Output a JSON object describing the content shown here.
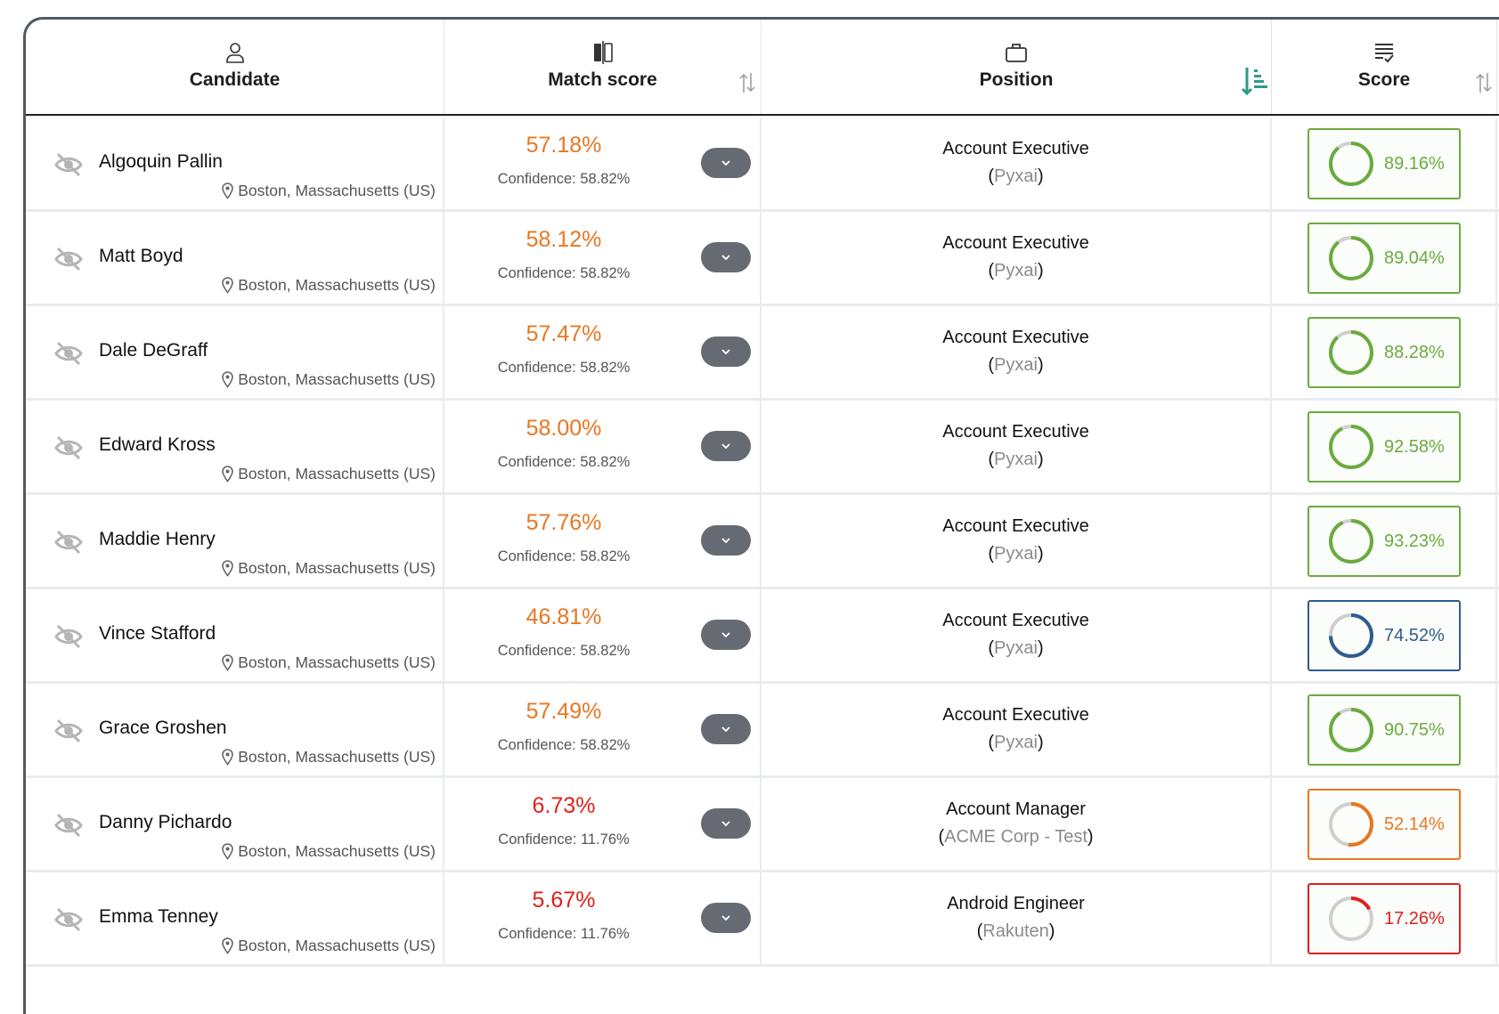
{
  "header": {
    "candidate": "Candidate",
    "match_score": "Match score",
    "position": "Position",
    "score": "Score"
  },
  "colors": {
    "green": "#6aab3e",
    "blue": "#2f5d8c",
    "orange": "#e87722",
    "red": "#e0201b",
    "sort_active": "#2f9a8a"
  },
  "rows": [
    {
      "name": "Algoquin Pallin",
      "location": "Boston, Massachusetts (US)",
      "match": "57.18%",
      "confidence": "Confidence: 58.82%",
      "match_level": "orange",
      "position": "Account Executive",
      "company": "Pyxai",
      "score": "89.16%",
      "score_value": 89.16,
      "score_level": "green"
    },
    {
      "name": "Matt Boyd",
      "location": "Boston, Massachusetts (US)",
      "match": "58.12%",
      "confidence": "Confidence: 58.82%",
      "match_level": "orange",
      "position": "Account Executive",
      "company": "Pyxai",
      "score": "89.04%",
      "score_value": 89.04,
      "score_level": "green"
    },
    {
      "name": "Dale DeGraff",
      "location": "Boston, Massachusetts (US)",
      "match": "57.47%",
      "confidence": "Confidence: 58.82%",
      "match_level": "orange",
      "position": "Account Executive",
      "company": "Pyxai",
      "score": "88.28%",
      "score_value": 88.28,
      "score_level": "green"
    },
    {
      "name": "Edward Kross",
      "location": "Boston, Massachusetts (US)",
      "match": "58.00%",
      "confidence": "Confidence: 58.82%",
      "match_level": "orange",
      "position": "Account Executive",
      "company": "Pyxai",
      "score": "92.58%",
      "score_value": 92.58,
      "score_level": "green"
    },
    {
      "name": "Maddie Henry",
      "location": "Boston, Massachusetts (US)",
      "match": "57.76%",
      "confidence": "Confidence: 58.82%",
      "match_level": "orange",
      "position": "Account Executive",
      "company": "Pyxai",
      "score": "93.23%",
      "score_value": 93.23,
      "score_level": "green"
    },
    {
      "name": "Vince Stafford",
      "location": "Boston, Massachusetts (US)",
      "match": "46.81%",
      "confidence": "Confidence: 58.82%",
      "match_level": "orange",
      "position": "Account Executive",
      "company": "Pyxai",
      "score": "74.52%",
      "score_value": 74.52,
      "score_level": "blue"
    },
    {
      "name": "Grace Groshen",
      "location": "Boston, Massachusetts (US)",
      "match": "57.49%",
      "confidence": "Confidence: 58.82%",
      "match_level": "orange",
      "position": "Account Executive",
      "company": "Pyxai",
      "score": "90.75%",
      "score_value": 90.75,
      "score_level": "green"
    },
    {
      "name": "Danny Pichardo",
      "location": "Boston, Massachusetts (US)",
      "match": "6.73%",
      "confidence": "Confidence: 11.76%",
      "match_level": "red",
      "position": "Account Manager",
      "company": "ACME Corp - Test",
      "score": "52.14%",
      "score_value": 52.14,
      "score_level": "orange"
    },
    {
      "name": "Emma Tenney",
      "location": "Boston, Massachusetts (US)",
      "match": "5.67%",
      "confidence": "Confidence: 11.76%",
      "match_level": "red",
      "position": "Android Engineer",
      "company": "Rakuten",
      "score": "17.26%",
      "score_value": 17.26,
      "score_level": "red"
    }
  ]
}
